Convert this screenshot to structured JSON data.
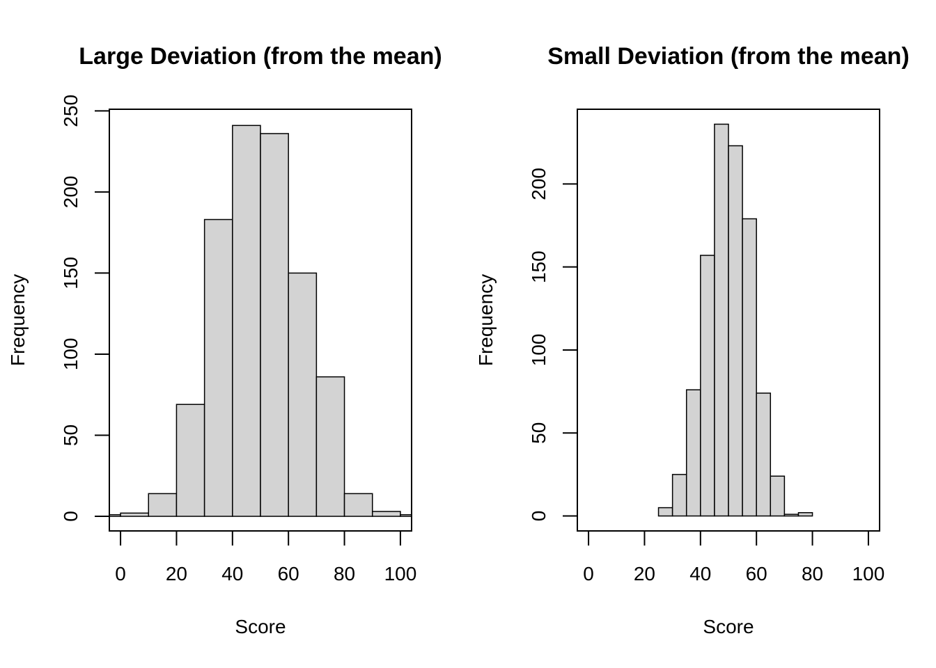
{
  "chart_data": [
    {
      "type": "bar",
      "title": "Large Deviation (from the mean)",
      "xlabel": "Score",
      "ylabel": "Frequency",
      "bin_edges": [
        -10,
        0,
        10,
        20,
        30,
        40,
        50,
        60,
        70,
        80,
        90,
        100,
        110
      ],
      "values": [
        1,
        2,
        14,
        69,
        183,
        241,
        236,
        150,
        86,
        14,
        3,
        1
      ],
      "xlim": [
        -4,
        104
      ],
      "ylim": [
        -9,
        251
      ],
      "x_ticks": [
        0,
        20,
        40,
        60,
        80,
        100
      ],
      "y_ticks": [
        0,
        50,
        100,
        150,
        200,
        250
      ],
      "grid": false,
      "colors": {
        "bar_fill": "#d3d3d3",
        "bar_edge": "#000000"
      }
    },
    {
      "type": "bar",
      "title": "Small Deviation (from the mean)",
      "xlabel": "Score",
      "ylabel": "Frequency",
      "bin_edges": [
        0,
        5,
        10,
        15,
        20,
        25,
        30,
        35,
        40,
        45,
        50,
        55,
        60,
        65,
        70,
        75,
        80,
        85,
        90,
        95,
        100
      ],
      "values": [
        0,
        0,
        0,
        0,
        0,
        5,
        25,
        76,
        157,
        236,
        223,
        179,
        74,
        24,
        1,
        2,
        0,
        0,
        0,
        0
      ],
      "xlim": [
        -4,
        104
      ],
      "ylim": [
        -9,
        245
      ],
      "x_ticks": [
        0,
        20,
        40,
        60,
        80,
        100
      ],
      "y_ticks": [
        0,
        50,
        100,
        150,
        200
      ],
      "grid": false,
      "colors": {
        "bar_fill": "#d3d3d3",
        "bar_edge": "#000000"
      }
    }
  ]
}
